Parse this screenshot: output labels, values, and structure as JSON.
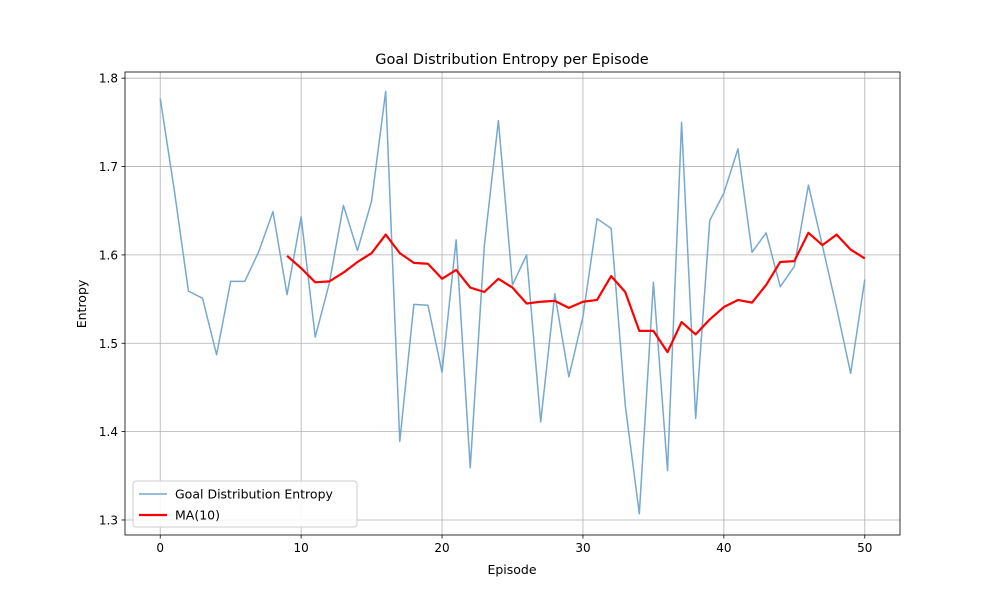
{
  "chart_data": {
    "type": "line",
    "title": "Goal Distribution Entropy per Episode",
    "xlabel": "Episode",
    "ylabel": "Entropy",
    "xlim": [
      -2.5,
      52.5
    ],
    "ylim": [
      1.283,
      1.807
    ],
    "x_ticks": [
      "0",
      "10",
      "20",
      "30",
      "40",
      "50"
    ],
    "y_ticks": [
      "1.3",
      "1.4",
      "1.5",
      "1.6",
      "1.7",
      "1.8"
    ],
    "x_tick_values": [
      0,
      10,
      20,
      30,
      40,
      50
    ],
    "y_tick_values": [
      1.3,
      1.4,
      1.5,
      1.6,
      1.7,
      1.8
    ],
    "grid": true,
    "legend_position": "lower left",
    "series": [
      {
        "name": "Goal Distribution Entropy",
        "color": "#76a9cf",
        "x": [
          0,
          1,
          2,
          3,
          4,
          5,
          6,
          7,
          8,
          9,
          10,
          11,
          12,
          13,
          14,
          15,
          16,
          17,
          18,
          19,
          20,
          21,
          22,
          23,
          24,
          25,
          26,
          27,
          28,
          29,
          30,
          31,
          32,
          33,
          34,
          35,
          36,
          37,
          38,
          39,
          40,
          41,
          42,
          43,
          44,
          45,
          46,
          47,
          48,
          49,
          50
        ],
        "values": [
          1.777,
          1.673,
          1.559,
          1.551,
          1.487,
          1.57,
          1.57,
          1.604,
          1.649,
          1.555,
          1.643,
          1.507,
          1.568,
          1.656,
          1.605,
          1.661,
          1.785,
          1.389,
          1.544,
          1.543,
          1.467,
          1.617,
          1.359,
          1.61,
          1.752,
          1.566,
          1.6,
          1.411,
          1.556,
          1.462,
          1.53,
          1.641,
          1.63,
          1.43,
          1.307,
          1.569,
          1.356,
          1.75,
          1.415,
          1.639,
          1.67,
          1.72,
          1.603,
          1.625,
          1.564,
          1.587,
          1.679,
          1.61,
          1.54,
          1.466,
          1.572
        ]
      },
      {
        "name": "MA(10)",
        "color": "#ff0000",
        "x": [
          9,
          10,
          11,
          12,
          13,
          14,
          15,
          16,
          17,
          18,
          19,
          20,
          21,
          22,
          23,
          24,
          25,
          26,
          27,
          28,
          29,
          30,
          31,
          32,
          33,
          34,
          35,
          36,
          37,
          38,
          39,
          40,
          41,
          42,
          43,
          44,
          45,
          46,
          47,
          48,
          49,
          50
        ],
        "values": [
          1.599,
          1.585,
          1.569,
          1.57,
          1.58,
          1.592,
          1.602,
          1.623,
          1.602,
          1.591,
          1.59,
          1.573,
          1.583,
          1.563,
          1.558,
          1.573,
          1.563,
          1.545,
          1.547,
          1.548,
          1.54,
          1.547,
          1.549,
          1.576,
          1.558,
          1.514,
          1.514,
          1.49,
          1.524,
          1.51,
          1.527,
          1.541,
          1.549,
          1.546,
          1.566,
          1.592,
          1.593,
          1.625,
          1.611,
          1.623,
          1.606,
          1.596
        ]
      }
    ]
  }
}
